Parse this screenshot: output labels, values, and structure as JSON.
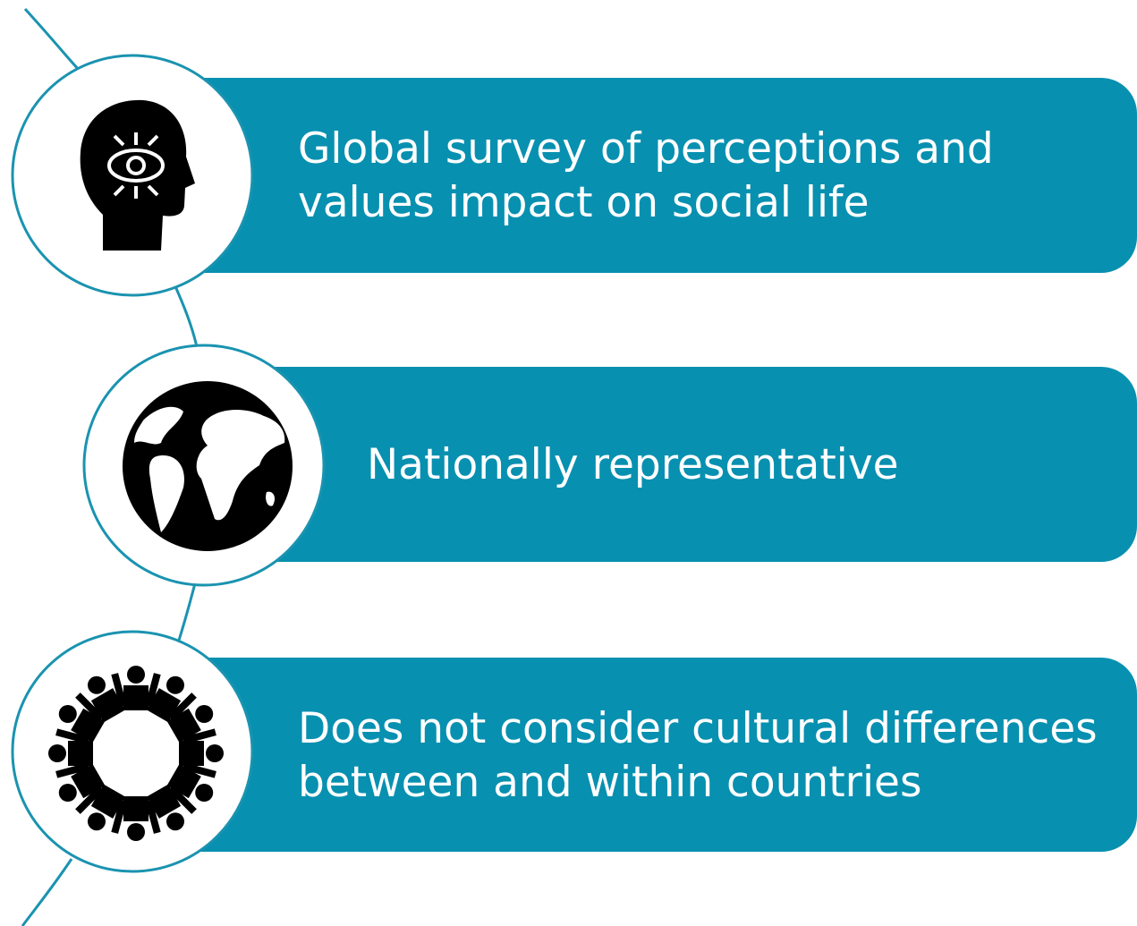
{
  "items": [
    {
      "lines": [
        "Global survey of perceptions and",
        "values impact on social life"
      ]
    },
    {
      "lines": [
        "Nationally representative"
      ]
    },
    {
      "lines": [
        "Does not consider cultural differences",
        "between and within countries"
      ]
    }
  ]
}
